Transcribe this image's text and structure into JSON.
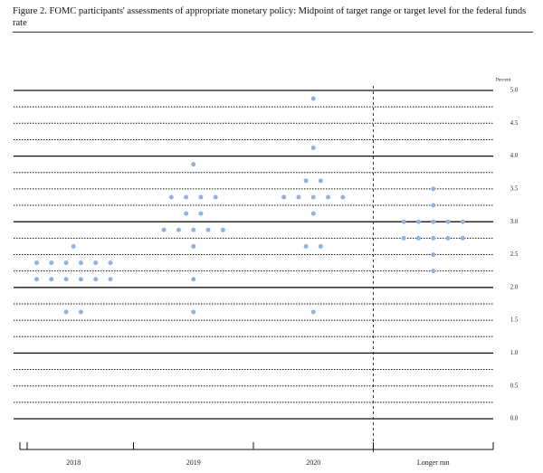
{
  "chart_data": {
    "type": "dot",
    "title": "Figure 2. FOMC participants' assessments of appropriate monetary policy: Midpoint of target range or target level for the federal funds rate",
    "y_label": "Percent",
    "categories": [
      "2018",
      "2019",
      "2020",
      "Longer run"
    ],
    "values": [
      [
        2.625,
        2.375,
        2.375,
        2.375,
        2.375,
        2.375,
        2.375,
        2.125,
        2.125,
        2.125,
        2.125,
        2.125,
        2.125,
        1.625,
        1.625
      ],
      [
        3.875,
        3.375,
        3.375,
        3.375,
        3.375,
        3.125,
        3.125,
        2.875,
        2.875,
        2.875,
        2.875,
        2.875,
        2.625,
        2.125,
        1.625
      ],
      [
        4.875,
        4.125,
        3.625,
        3.625,
        3.375,
        3.375,
        3.375,
        3.375,
        3.375,
        3.125,
        2.625,
        2.625,
        1.625
      ],
      [
        3.5,
        3.25,
        3.0,
        3.0,
        3.0,
        3.0,
        3.0,
        2.75,
        2.75,
        2.75,
        2.75,
        2.75,
        2.5,
        2.25
      ]
    ],
    "color": "#8fb3e0",
    "ylim": [
      0,
      5
    ],
    "yticks": [
      {
        "value": 0,
        "label": "0.0"
      },
      0.5,
      {
        "value": 1,
        "label": "1.0"
      },
      1.5,
      {
        "value": 2,
        "label": "2.0"
      },
      2.5,
      {
        "value": 3,
        "label": "3.0"
      },
      3.5,
      {
        "value": 4,
        "label": "4.0"
      },
      4.5,
      {
        "value": 5,
        "label": "5.0"
      }
    ],
    "grid": true
  }
}
